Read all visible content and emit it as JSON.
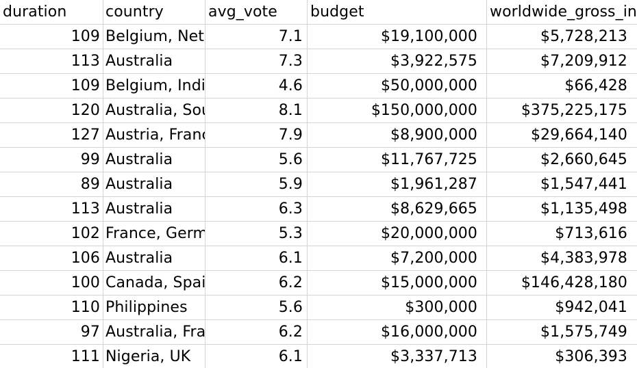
{
  "headers": [
    "duration",
    "country",
    "avg_vote",
    "budget",
    "worldwide_gross_income"
  ],
  "rows": [
    [
      "109",
      "Belgium, Netherlands",
      "7.1",
      "$19,100,000",
      "$5,728,213"
    ],
    [
      "113",
      "Australia",
      "7.3",
      "$3,922,575",
      "$7,209,912"
    ],
    [
      "109",
      "Belgium, India",
      "4.6",
      "$50,000,000",
      "$66,428"
    ],
    [
      "120",
      "Australia, South Africa",
      "8.1",
      "$150,000,000",
      "$375,225,175"
    ],
    [
      "127",
      "Austria, France",
      "7.9",
      "$8,900,000",
      "$29,664,140"
    ],
    [
      "99",
      "Australia",
      "5.6",
      "$11,767,725",
      "$2,660,645"
    ],
    [
      "89",
      "Australia",
      "5.9",
      "$1,961,287",
      "$1,547,441"
    ],
    [
      "113",
      "Australia",
      "6.3",
      "$8,629,665",
      "$1,135,498"
    ],
    [
      "102",
      "France, Germany",
      "5.3",
      "$20,000,000",
      "$713,616"
    ],
    [
      "106",
      "Australia",
      "6.1",
      "$7,200,000",
      "$4,383,978"
    ],
    [
      "100",
      "Canada, Spain",
      "6.2",
      "$15,000,000",
      "$146,428,180"
    ],
    [
      "110",
      "Philippines",
      "5.6",
      "$300,000",
      "$942,041"
    ],
    [
      "97",
      "Australia, France",
      "6.2",
      "$16,000,000",
      "$1,575,749"
    ],
    [
      "111",
      "Nigeria, UK",
      "6.1",
      "$3,337,713",
      "$306,393"
    ]
  ],
  "filter_icon": "filter-dropdown-icon"
}
